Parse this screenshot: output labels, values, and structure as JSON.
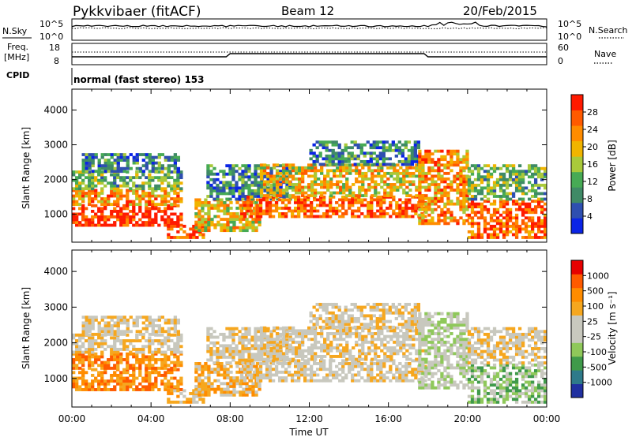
{
  "header": {
    "station": "Pykkvibaer (fitACF)",
    "beam": "Beam 12",
    "date": "20/Feb/2015"
  },
  "strips": {
    "nsky_label": "N.Sky",
    "nsky_ticks": [
      "10^5",
      "10^0"
    ],
    "nsearch_label": "N.Search",
    "nsearch_ticks": [
      "10^5",
      "10^0"
    ],
    "freq_label_1": "Freq.",
    "freq_label_2": "[MHz]",
    "freq_ticks": [
      "18",
      "8"
    ],
    "nave_label": "Nave",
    "nave_ticks": [
      "60",
      "0"
    ],
    "cpid_label": "CPID",
    "cpid_text": "normal (fast stereo) 153"
  },
  "colors": {
    "power": [
      "#0a24e6",
      "#2e4fb0",
      "#3f8a66",
      "#47aa55",
      "#a9c93a",
      "#f0b400",
      "#ff8c00",
      "#ff5a00",
      "#ff1a00"
    ],
    "velocity": [
      "#e60000",
      "#ff5a00",
      "#ff8c00",
      "#f6a71f",
      "#c8c8be",
      "#c8c8be",
      "#8fc85a",
      "#3f9a4a",
      "#2e7a8a",
      "#2030a0"
    ]
  },
  "chart_data": [
    {
      "type": "heatmap",
      "name": "power",
      "ylabel": "Slant Range [km]",
      "yticks": [
        "1000",
        "2000",
        "3000",
        "4000"
      ],
      "ylim": [
        200,
        4600
      ],
      "xticks": [
        "00:00",
        "04:00",
        "08:00",
        "12:00",
        "16:00",
        "20:00",
        "00:00"
      ],
      "xlim_hours": [
        0,
        24
      ],
      "colorbar_label": "Power [dB]",
      "colorbar_ticks": [
        "4",
        "8",
        "12",
        "16",
        "20",
        "24",
        "28"
      ]
    },
    {
      "type": "heatmap",
      "name": "velocity",
      "ylabel": "Slant Range [km]",
      "yticks": [
        "1000",
        "2000",
        "3000",
        "4000"
      ],
      "ylim": [
        200,
        4600
      ],
      "xticks": [
        "00:00",
        "04:00",
        "08:00",
        "12:00",
        "16:00",
        "20:00",
        "00:00"
      ],
      "xlim_hours": [
        0,
        24
      ],
      "xlabel": "Time UT",
      "colorbar_label": "Velocity [m s⁻¹]",
      "colorbar_ticks": [
        "1000",
        "500",
        "100",
        "25",
        "-25",
        "-100",
        "-500",
        "-1000"
      ]
    }
  ]
}
